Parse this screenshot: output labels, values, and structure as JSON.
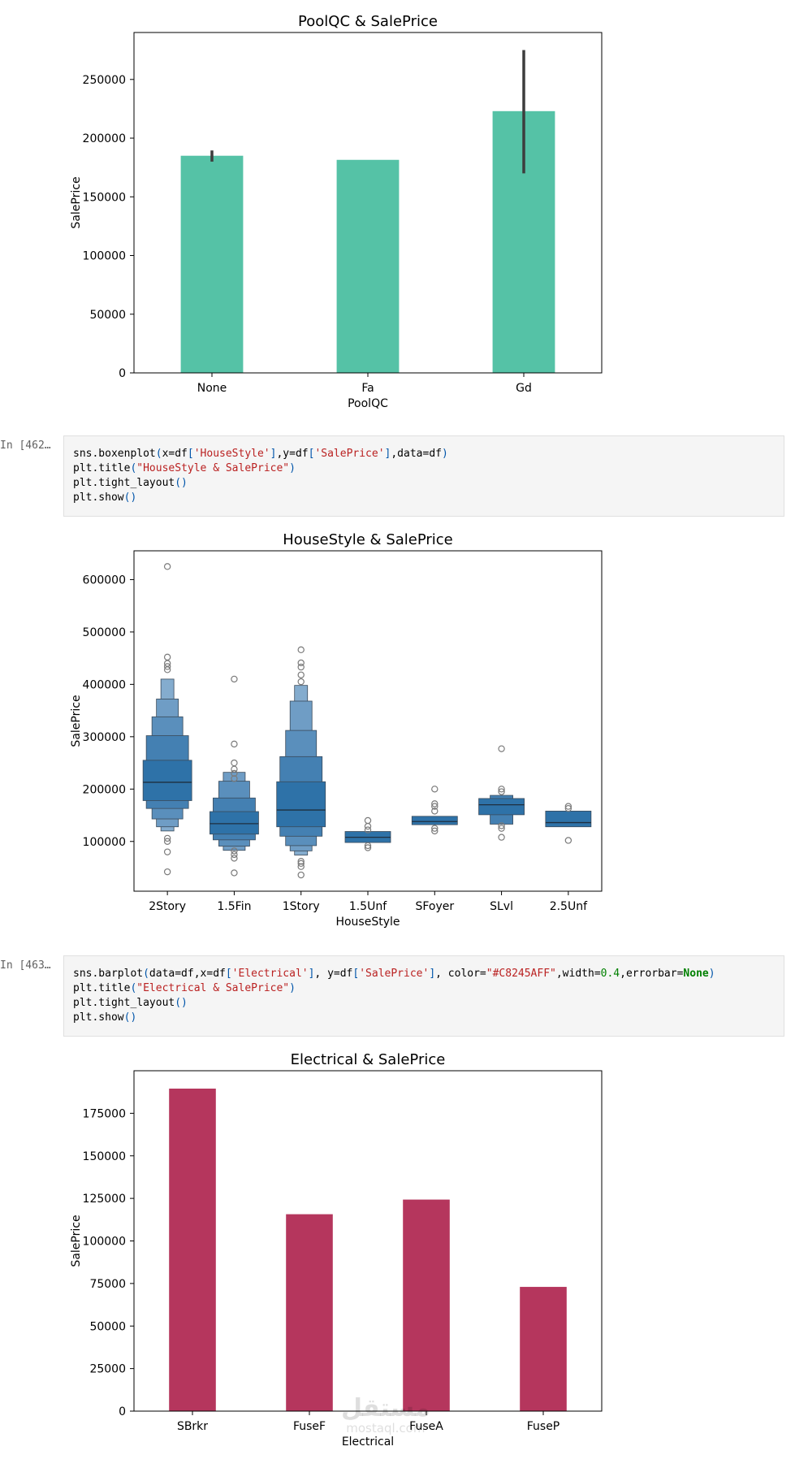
{
  "cells": [
    {
      "prompt": "In [462…",
      "code": [
        [
          [
            "sns.boxenplot",
            "p"
          ],
          [
            "(",
            "b"
          ],
          [
            "x=df",
            "p"
          ],
          [
            "[",
            "b"
          ],
          [
            "'HouseStyle'",
            "s"
          ],
          [
            "]",
            "b"
          ],
          [
            ",y=df",
            "p"
          ],
          [
            "[",
            "b"
          ],
          [
            "'SalePrice'",
            "s"
          ],
          [
            "]",
            "b"
          ],
          [
            ",data=df",
            "p"
          ],
          [
            ")",
            "b"
          ]
        ],
        [
          [
            "plt.title",
            "p"
          ],
          [
            "(",
            "b"
          ],
          [
            "\"HouseStyle & SalePrice\"",
            "s"
          ],
          [
            ")",
            "b"
          ]
        ],
        [
          [
            "plt.tight_layout",
            "p"
          ],
          [
            "()",
            "b"
          ]
        ],
        [
          [
            "plt.show",
            "p"
          ],
          [
            "()",
            "b"
          ]
        ]
      ]
    },
    {
      "prompt": "In [463…",
      "code": [
        [
          [
            "sns.barplot",
            "p"
          ],
          [
            "(",
            "b"
          ],
          [
            "data=df,x=df",
            "p"
          ],
          [
            "[",
            "b"
          ],
          [
            "'Electrical'",
            "s"
          ],
          [
            "]",
            "b"
          ],
          [
            ", y=df",
            "p"
          ],
          [
            "[",
            "b"
          ],
          [
            "'SalePrice'",
            "s"
          ],
          [
            "]",
            "b"
          ],
          [
            ", color=",
            "p"
          ],
          [
            "\"#C8245AFF\"",
            "s"
          ],
          [
            ",width=",
            "p"
          ],
          [
            "0.4",
            "n"
          ],
          [
            ",errorbar=",
            "p"
          ],
          [
            "None",
            "k"
          ],
          [
            ")",
            "b"
          ]
        ],
        [
          [
            "plt.title",
            "p"
          ],
          [
            "(",
            "b"
          ],
          [
            "\"Electrical & SalePrice\"",
            "s"
          ],
          [
            ")",
            "b"
          ]
        ],
        [
          [
            "plt.tight_layout",
            "p"
          ],
          [
            "()",
            "b"
          ]
        ],
        [
          [
            "plt.show",
            "p"
          ],
          [
            "()",
            "b"
          ]
        ]
      ]
    }
  ],
  "chart_data": [
    {
      "type": "bar",
      "title": "PoolQC & SalePrice",
      "xlabel": "PoolQC",
      "ylabel": "SalePrice",
      "categories": [
        "None",
        "Fa",
        "Gd"
      ],
      "values": [
        185000,
        181500,
        223000
      ],
      "error_bars": [
        [
          180000,
          189500
        ],
        null,
        [
          170000,
          275000
        ]
      ],
      "ylim": [
        0,
        290000
      ],
      "yticks": [
        0,
        50000,
        100000,
        150000,
        200000,
        250000
      ],
      "ytick_labels": [
        "0",
        "50000",
        "100000",
        "150000",
        "200000",
        "250000"
      ],
      "color": "#55c2a6"
    },
    {
      "type": "boxen",
      "title": "HouseStyle & SalePrice",
      "xlabel": "HouseStyle",
      "ylabel": "SalePrice",
      "categories": [
        "2Story",
        "1.5Fin",
        "1Story",
        "1.5Unf",
        "SFoyer",
        "SLvl",
        "2.5Unf"
      ],
      "ylim": [
        5000,
        655000
      ],
      "yticks": [
        100000,
        200000,
        300000,
        400000,
        500000,
        600000
      ],
      "ytick_labels": [
        "100000",
        "200000",
        "300000",
        "400000",
        "500000",
        "600000"
      ],
      "color": "#2e72a8",
      "groups": [
        {
          "category": "2Story",
          "median": 213000,
          "boxes": [
            [
              178000,
              255000,
              60
            ],
            [
              163000,
              302000,
              52
            ],
            [
              143000,
              338000,
              38
            ],
            [
              128000,
              372000,
              27
            ],
            [
              120000,
              410000,
              16
            ]
          ],
          "outliers": [
            42000,
            80000,
            100000,
            106000,
            452000,
            440000,
            434000,
            428000,
            625000
          ]
        },
        {
          "category": "1.5Fin",
          "median": 134000,
          "boxes": [
            [
              114000,
              157000,
              60
            ],
            [
              103000,
              183000,
              52
            ],
            [
              91000,
              215000,
              38
            ],
            [
              83000,
              232000,
              27
            ]
          ],
          "outliers": [
            40000,
            68000,
            75000,
            82000,
            220000,
            230000,
            238000,
            250000,
            286000,
            410000
          ]
        },
        {
          "category": "1Story",
          "median": 160000,
          "boxes": [
            [
              128000,
              214000,
              60
            ],
            [
              110000,
              262000,
              52
            ],
            [
              92000,
              312000,
              38
            ],
            [
              82000,
              368000,
              27
            ],
            [
              74000,
              398000,
              16
            ]
          ],
          "outliers": [
            36000,
            52000,
            58000,
            62000,
            405000,
            418000,
            433000,
            441000,
            466000
          ]
        },
        {
          "category": "1.5Unf",
          "median": 108000,
          "boxes": [
            [
              98000,
              119000,
              56
            ]
          ],
          "outliers": [
            88000,
            92000,
            122000,
            129000,
            140000
          ]
        },
        {
          "category": "SFoyer",
          "median": 138000,
          "boxes": [
            [
              132000,
              148000,
              56
            ]
          ],
          "outliers": [
            120000,
            125000,
            158000,
            167000,
            172000,
            200000
          ]
        },
        {
          "category": "SLvl",
          "median": 170000,
          "boxes": [
            [
              151000,
              182000,
              56
            ],
            [
              133000,
              188000,
              28
            ]
          ],
          "outliers": [
            108000,
            125000,
            130000,
            195000,
            200000,
            277000
          ]
        },
        {
          "category": "2.5Unf",
          "median": 136000,
          "boxes": [
            [
              128000,
              158000,
              56
            ]
          ],
          "outliers": [
            102000,
            163000,
            167000
          ]
        }
      ]
    },
    {
      "type": "bar",
      "title": "Electrical & SalePrice",
      "xlabel": "Electrical",
      "ylabel": "SalePrice",
      "categories": [
        "SBrkr",
        "FuseF",
        "FuseA",
        "FuseP"
      ],
      "values": [
        189500,
        115700,
        124300,
        73000
      ],
      "ylim": [
        0,
        200000
      ],
      "yticks": [
        0,
        25000,
        50000,
        75000,
        100000,
        125000,
        150000,
        175000
      ],
      "ytick_labels": [
        "0",
        "25000",
        "50000",
        "75000",
        "100000",
        "125000",
        "150000",
        "175000"
      ],
      "color": "#b5365d"
    }
  ],
  "watermark": {
    "line1": "مستقل",
    "line2": "mostaql.com"
  }
}
